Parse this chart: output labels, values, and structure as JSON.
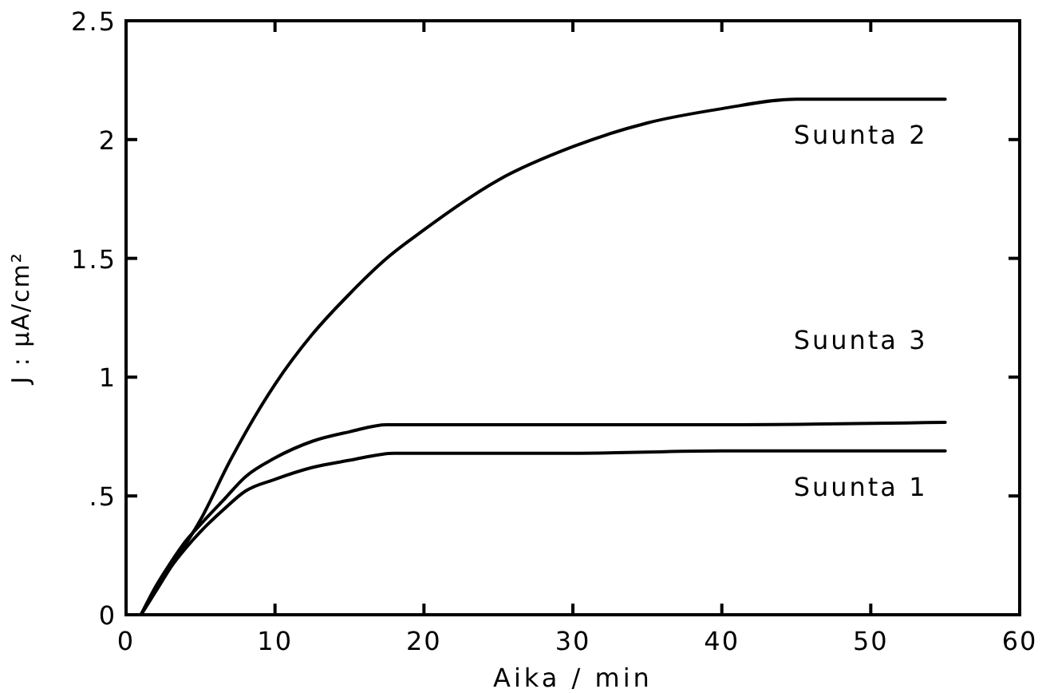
{
  "chart_data": {
    "type": "line",
    "xlabel": "Aika / min",
    "ylabel": "J : μA/cm²",
    "xlim": [
      0,
      60
    ],
    "ylim": [
      0,
      2.5
    ],
    "xticks": [
      0,
      10,
      20,
      30,
      40,
      50,
      60
    ],
    "yticks": [
      0,
      {
        "value": 0.5,
        "label": ".5"
      },
      1,
      1.5,
      2,
      2.5
    ],
    "grid": false,
    "marker": "none",
    "line_style": "solid",
    "series": [
      {
        "name": "Suunta 2",
        "color": "#000000",
        "x": [
          1,
          2,
          3,
          5,
          7,
          10,
          12.5,
          15,
          17.5,
          20,
          25,
          30,
          35,
          40,
          45,
          50,
          55
        ],
        "values": [
          0,
          0.1,
          0.2,
          0.4,
          0.65,
          0.97,
          1.18,
          1.35,
          1.5,
          1.62,
          1.83,
          1.97,
          2.07,
          2.13,
          2.17,
          2.17,
          2.17
        ]
      },
      {
        "name": "Suunta 3",
        "color": "#000000",
        "x": [
          1,
          2,
          3,
          4,
          5,
          6.5,
          8,
          10,
          12.5,
          15,
          17.5,
          20,
          30,
          40,
          55
        ],
        "values": [
          0,
          0.12,
          0.22,
          0.31,
          0.38,
          0.48,
          0.58,
          0.66,
          0.73,
          0.77,
          0.8,
          0.8,
          0.8,
          0.8,
          0.81
        ]
      },
      {
        "name": "Suunta 1",
        "color": "#000000",
        "x": [
          1,
          2,
          3,
          4,
          5,
          6.5,
          8,
          10,
          12.5,
          15,
          18,
          20,
          30,
          40,
          55
        ],
        "values": [
          0,
          0.1,
          0.2,
          0.28,
          0.35,
          0.44,
          0.52,
          0.57,
          0.62,
          0.65,
          0.68,
          0.68,
          0.68,
          0.69,
          0.69
        ]
      }
    ]
  }
}
